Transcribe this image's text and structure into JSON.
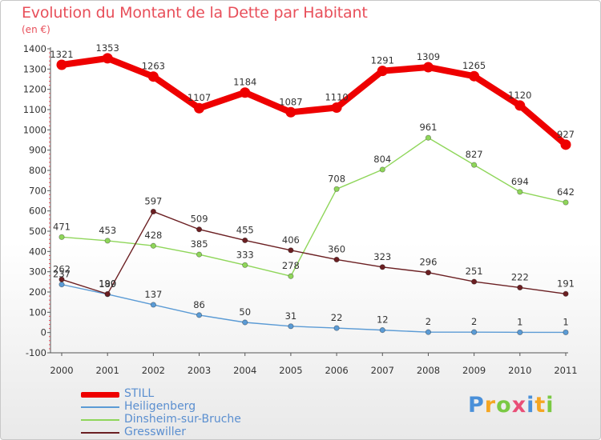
{
  "header": {
    "title": "Evolution du Montant de la Dette par Habitant",
    "subtitle": "(en €)"
  },
  "logo": {
    "text": "Proxiti",
    "colors": [
      "#4a90d9",
      "#f5a623",
      "#7ac943",
      "#e94e77",
      "#4a90d9",
      "#f5a623",
      "#7ac943"
    ]
  },
  "chart_data": {
    "type": "line",
    "categories": [
      "2000",
      "2001",
      "2002",
      "2003",
      "2004",
      "2005",
      "2006",
      "2007",
      "2008",
      "2009",
      "2010",
      "2011"
    ],
    "ylim": [
      -100,
      1400
    ],
    "yticks": [
      -100,
      0,
      100,
      200,
      300,
      400,
      500,
      600,
      700,
      800,
      900,
      1000,
      1100,
      1200,
      1300,
      1400
    ],
    "grid": false,
    "legend_position": "bottom-left",
    "series": [
      {
        "name": "STILL",
        "color": "#ee0000",
        "values": [
          1321,
          1353,
          1263,
          1107,
          1184,
          1087,
          1110,
          1291,
          1309,
          1265,
          1120,
          927
        ]
      },
      {
        "name": "Heiligenberg",
        "color": "#5b9bd5",
        "values": [
          237,
          189,
          137,
          86,
          50,
          31,
          22,
          12,
          2,
          2,
          1,
          1
        ]
      },
      {
        "name": "Dinsheim-sur-Bruche",
        "color": "#8fd65a",
        "values": [
          471,
          453,
          428,
          385,
          333,
          278,
          708,
          804,
          961,
          827,
          694,
          642
        ]
      },
      {
        "name": "Gresswiller",
        "color": "#6b1f22",
        "values": [
          262,
          190,
          597,
          509,
          455,
          406,
          360,
          323,
          296,
          251,
          222,
          191
        ]
      }
    ]
  }
}
